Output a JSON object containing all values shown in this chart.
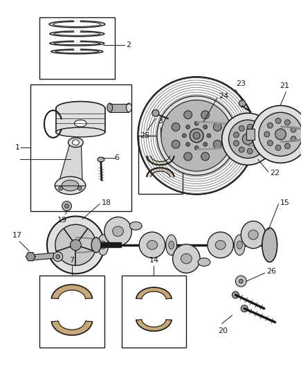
{
  "background_color": "#ffffff",
  "line_color": "#1a1a1a",
  "gray_fill": "#c8c8c8",
  "light_gray": "#e0e0e0",
  "dark_gray": "#888888",
  "fig_width": 4.38,
  "fig_height": 5.33,
  "dpi": 100
}
